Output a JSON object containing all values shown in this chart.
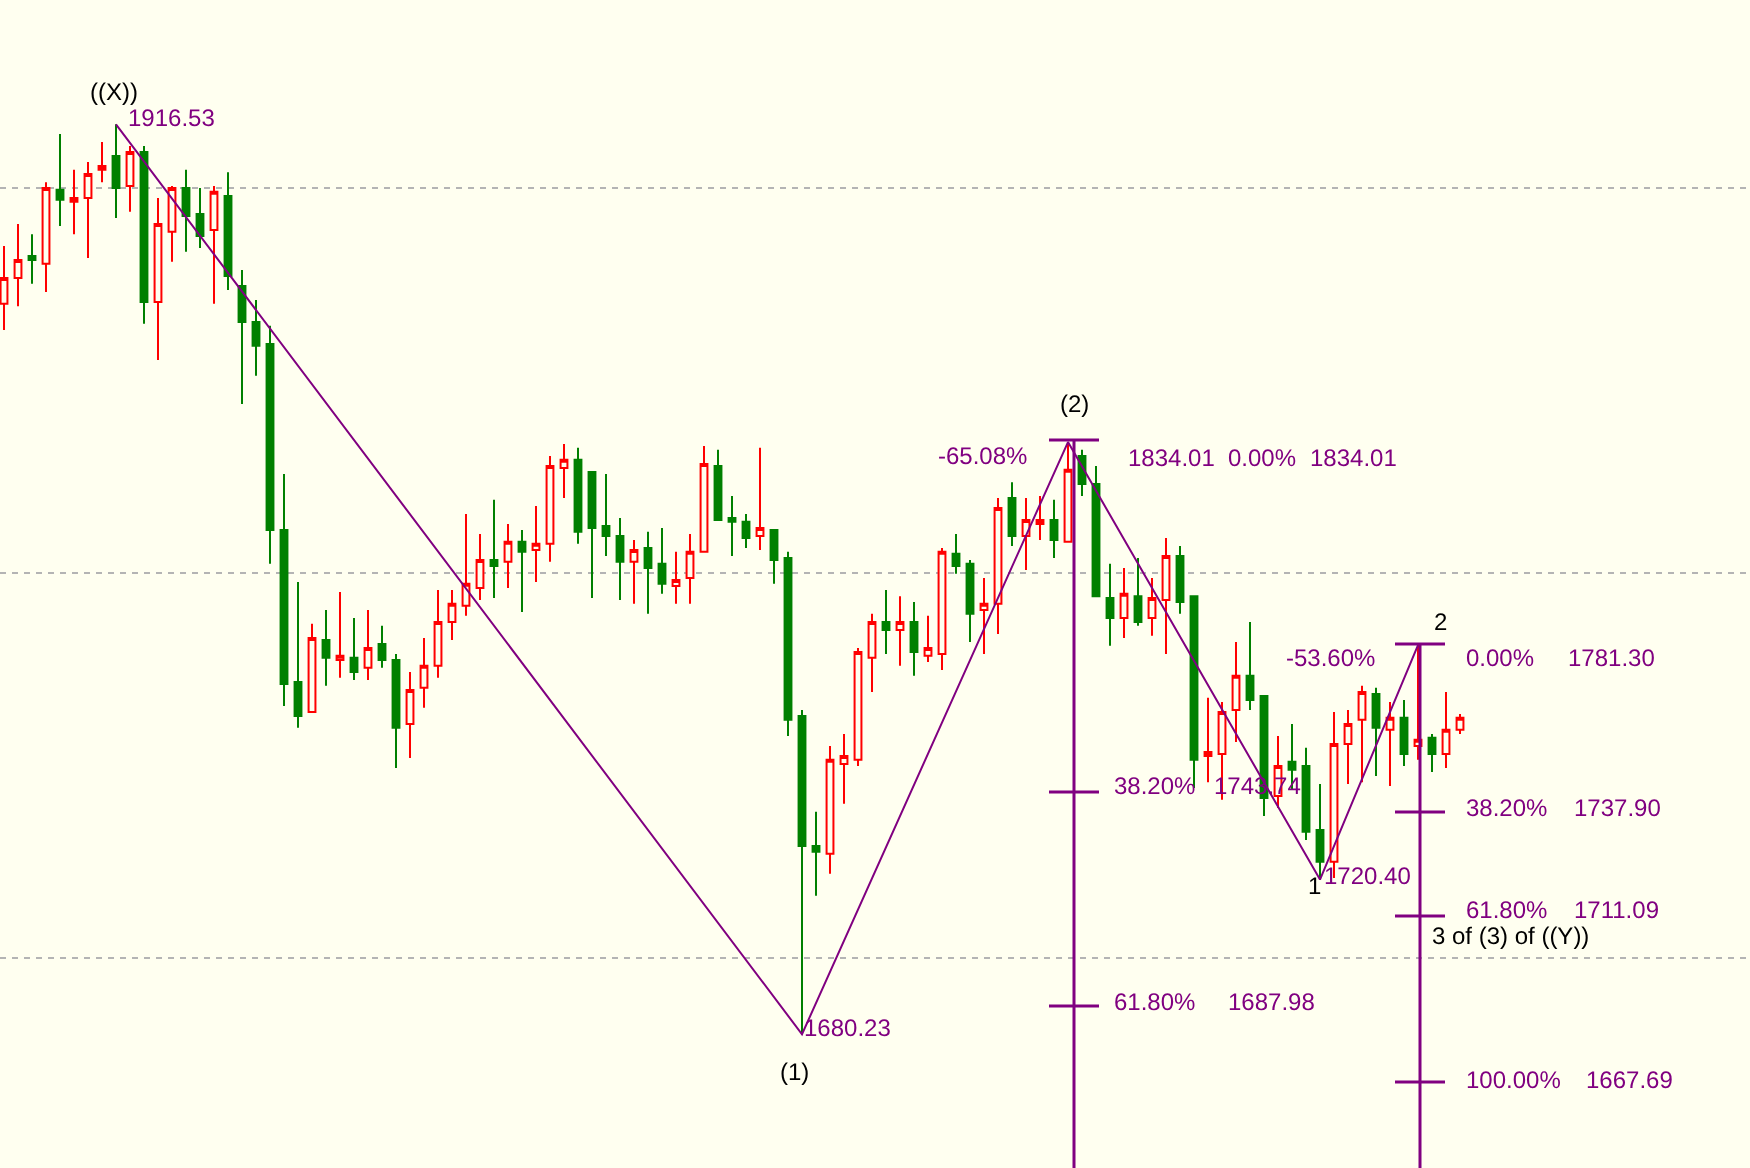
{
  "chart_data": {
    "type": "candlestick",
    "categories": [
      null,
      null,
      null,
      null,
      null,
      null,
      null,
      null,
      null,
      null,
      null,
      null,
      null,
      null,
      null,
      null,
      null,
      null,
      null,
      null,
      null,
      null,
      null,
      null,
      null,
      null,
      null,
      null,
      null,
      null,
      null,
      null,
      null,
      null,
      null,
      null,
      null,
      null,
      null,
      null,
      null,
      null,
      null,
      null,
      null,
      null,
      null,
      null,
      null,
      null,
      null,
      null,
      null,
      null,
      null,
      null,
      null,
      null,
      null,
      null,
      null,
      null,
      null,
      null,
      null,
      null,
      null,
      null,
      null,
      null,
      null,
      null,
      null,
      null,
      null,
      null,
      null,
      null,
      null,
      null,
      null,
      null,
      null,
      null,
      null,
      null,
      null,
      null,
      null,
      null,
      null,
      null,
      null,
      null,
      null,
      null,
      null,
      null,
      null,
      null,
      null,
      null,
      null,
      null,
      null
    ],
    "ohlc": [
      [
        1869.9,
        1884.9,
        1863.1,
        1876.6
      ],
      [
        1876.6,
        1890.6,
        1869.3,
        1881.3
      ],
      [
        1882.3,
        1888.0,
        1875.1,
        1881.3
      ],
      [
        1880.3,
        1901.5,
        1873.0,
        1900.0
      ],
      [
        1899.5,
        1914.0,
        1890.1,
        1896.9
      ],
      [
        1896.4,
        1904.7,
        1888.0,
        1897.4
      ],
      [
        1897.4,
        1906.7,
        1881.8,
        1903.6
      ],
      [
        1904.7,
        1911.9,
        1901.5,
        1905.7
      ],
      [
        1908.3,
        1916.53,
        1892.2,
        1900.0
      ],
      [
        1900.5,
        1910.9,
        1893.8,
        1909.3
      ],
      [
        1909.3,
        1910.9,
        1864.7,
        1870.4
      ],
      [
        1870.4,
        1897.4,
        1855.3,
        1890.6
      ],
      [
        1888.6,
        1900.5,
        1880.8,
        1900.0
      ],
      [
        1900.0,
        1904.7,
        1883.4,
        1892.7
      ],
      [
        1893.2,
        1900.0,
        1884.4,
        1887.5
      ],
      [
        1889.1,
        1900.5,
        1869.9,
        1899.0
      ],
      [
        1897.9,
        1904.1,
        1873.5,
        1877.1
      ],
      [
        1874.5,
        1878.7,
        1843.9,
        1865.2
      ],
      [
        1865.2,
        1870.9,
        1851.2,
        1859.0
      ],
      [
        1859.5,
        1864.2,
        1802.4,
        1811.2
      ],
      [
        1811.2,
        1825.7,
        1765.5,
        1771.2
      ],
      [
        1771.7,
        1797.7,
        1759.8,
        1762.9
      ],
      [
        1763.9,
        1786.8,
        1763.9,
        1783.1
      ],
      [
        1782.6,
        1790.4,
        1770.7,
        1778.0
      ],
      [
        1777.4,
        1795.1,
        1772.8,
        1778.5
      ],
      [
        1778.0,
        1788.3,
        1772.2,
        1774.3
      ],
      [
        1775.4,
        1790.4,
        1772.2,
        1780.5
      ],
      [
        1781.6,
        1786.3,
        1775.4,
        1777.4
      ],
      [
        1777.4,
        1779.0,
        1749.4,
        1759.8
      ],
      [
        1760.8,
        1774.3,
        1752.0,
        1769.6
      ],
      [
        1770.2,
        1783.1,
        1765.0,
        1775.9
      ],
      [
        1775.9,
        1795.6,
        1772.8,
        1787.3
      ],
      [
        1787.3,
        1795.6,
        1782.6,
        1792.0
      ],
      [
        1791.5,
        1815.3,
        1788.9,
        1797.2
      ],
      [
        1796.1,
        1810.1,
        1793.0,
        1803.4
      ],
      [
        1803.4,
        1819.0,
        1793.5,
        1801.8
      ],
      [
        1802.9,
        1812.7,
        1796.1,
        1808.1
      ],
      [
        1808.1,
        1811.2,
        1789.9,
        1805.5
      ],
      [
        1806.0,
        1817.4,
        1797.7,
        1807.6
      ],
      [
        1807.6,
        1830.4,
        1802.9,
        1827.8
      ],
      [
        1827.3,
        1833.5,
        1819.5,
        1829.4
      ],
      [
        1829.4,
        1832.5,
        1807.6,
        1810.7
      ],
      [
        1826.2,
        1826.2,
        1793.5,
        1811.7
      ],
      [
        1812.2,
        1825.7,
        1804.4,
        1809.6
      ],
      [
        1809.6,
        1814.3,
        1793.0,
        1802.9
      ],
      [
        1802.9,
        1808.6,
        1792.0,
        1806.0
      ],
      [
        1806.5,
        1810.7,
        1789.4,
        1801.3
      ],
      [
        1802.4,
        1811.7,
        1794.6,
        1797.2
      ],
      [
        1796.6,
        1805.5,
        1792.0,
        1798.2
      ],
      [
        1798.7,
        1810.1,
        1792.0,
        1805.5
      ],
      [
        1805.5,
        1833.0,
        1805.5,
        1828.3
      ],
      [
        1827.8,
        1832.0,
        1813.8,
        1813.8
      ],
      [
        1814.3,
        1820.0,
        1804.4,
        1813.3
      ],
      [
        1813.3,
        1815.3,
        1806.5,
        1809.1
      ],
      [
        1809.6,
        1832.5,
        1806.0,
        1811.7
      ],
      [
        1811.2,
        1811.2,
        1797.2,
        1803.4
      ],
      [
        1803.9,
        1805.5,
        1757.7,
        1761.9
      ],
      [
        1762.9,
        1764.4,
        1680.23,
        1729.1
      ],
      [
        1729.1,
        1738.0,
        1716.2,
        1727.6
      ],
      [
        1727.1,
        1755.1,
        1721.9,
        1751.5
      ],
      [
        1750.4,
        1758.2,
        1740.1,
        1752.5
      ],
      [
        1751.5,
        1780.5,
        1749.9,
        1779.5
      ],
      [
        1778.0,
        1789.4,
        1769.1,
        1787.3
      ],
      [
        1787.3,
        1795.6,
        1779.0,
        1785.2
      ],
      [
        1785.2,
        1794.0,
        1775.9,
        1787.3
      ],
      [
        1787.3,
        1792.5,
        1773.3,
        1779.5
      ],
      [
        1778.5,
        1788.9,
        1776.9,
        1780.5
      ],
      [
        1779.0,
        1806.5,
        1774.8,
        1805.5
      ],
      [
        1805.0,
        1810.1,
        1799.8,
        1801.8
      ],
      [
        1802.4,
        1803.4,
        1782.1,
        1789.4
      ],
      [
        1790.4,
        1798.7,
        1779.0,
        1792.0
      ],
      [
        1792.0,
        1819.5,
        1784.2,
        1816.9
      ],
      [
        1819.5,
        1823.6,
        1807.0,
        1809.6
      ],
      [
        1809.6,
        1819.5,
        1800.8,
        1813.8
      ],
      [
        1812.7,
        1820.0,
        1808.6,
        1813.8
      ],
      [
        1813.8,
        1819.0,
        1803.9,
        1808.6
      ],
      [
        1808.1,
        1834.01,
        1808.1,
        1826.8
      ],
      [
        1830.4,
        1832.0,
        1820.0,
        1823.1
      ],
      [
        1823.1,
        1827.8,
        1794.0,
        1794.0
      ],
      [
        1793.5,
        1802.4,
        1781.1,
        1788.3
      ],
      [
        1788.3,
        1801.3,
        1783.1,
        1794.6
      ],
      [
        1794.0,
        1803.9,
        1786.3,
        1787.3
      ],
      [
        1788.3,
        1798.7,
        1783.7,
        1793.5
      ],
      [
        1793.0,
        1809.1,
        1779.0,
        1804.4
      ],
      [
        1804.4,
        1807.0,
        1789.4,
        1792.5
      ],
      [
        1794.0,
        1794.0,
        1744.2,
        1751.5
      ],
      [
        1752.5,
        1767.6,
        1745.7,
        1753.5
      ],
      [
        1753.0,
        1766.5,
        1741.1,
        1763.9
      ],
      [
        1764.4,
        1782.1,
        1756.1,
        1773.3
      ],
      [
        1773.3,
        1787.3,
        1764.4,
        1767.0
      ],
      [
        1768.1,
        1768.1,
        1736.9,
        1741.6
      ],
      [
        1742.1,
        1757.7,
        1739.0,
        1749.9
      ],
      [
        1751.0,
        1760.8,
        1743.7,
        1748.9
      ],
      [
        1749.9,
        1754.6,
        1730.7,
        1732.8
      ],
      [
        1733.3,
        1745.2,
        1720.4,
        1725.0
      ],
      [
        1725.0,
        1763.9,
        1720.8,
        1755.6
      ],
      [
        1755.6,
        1764.4,
        1745.2,
        1760.8
      ],
      [
        1761.9,
        1770.7,
        1745.7,
        1769.1
      ],
      [
        1768.6,
        1770.2,
        1747.3,
        1759.8
      ],
      [
        1759.3,
        1766.5,
        1744.7,
        1762.4
      ],
      [
        1762.4,
        1767.0,
        1749.9,
        1753.0
      ],
      [
        1755.1,
        1781.3,
        1751.5,
        1756.7
      ],
      [
        1757.2,
        1758.2,
        1748.3,
        1753.0
      ],
      [
        1753.0,
        1769.1,
        1749.4,
        1759.3
      ],
      [
        1759.3,
        1763.4,
        1758.2,
        1762.4
      ]
    ],
    "colors": [
      "#ff0000",
      "#ff0000",
      "#008000",
      "#ff0000",
      "#008000",
      "#ff0000",
      "#ff0000",
      "#ff0000",
      "#008000",
      "#ff0000",
      "#008000",
      "#ff0000",
      "#ff0000",
      "#008000",
      "#008000",
      "#ff0000",
      "#008000",
      "#008000",
      "#008000",
      "#008000",
      "#008000",
      "#008000",
      "#ff0000",
      "#008000",
      "#ff0000",
      "#008000",
      "#ff0000",
      "#008000",
      "#008000",
      "#ff0000",
      "#ff0000",
      "#ff0000",
      "#ff0000",
      "#ff0000",
      "#ff0000",
      "#008000",
      "#ff0000",
      "#008000",
      "#ff0000",
      "#ff0000",
      "#ff0000",
      "#008000",
      "#008000",
      "#008000",
      "#008000",
      "#ff0000",
      "#008000",
      "#008000",
      "#ff0000",
      "#ff0000",
      "#ff0000",
      "#008000",
      "#008000",
      "#008000",
      "#ff0000",
      "#008000",
      "#008000",
      "#008000",
      "#008000",
      "#ff0000",
      "#ff0000",
      "#ff0000",
      "#ff0000",
      "#008000",
      "#ff0000",
      "#008000",
      "#ff0000",
      "#ff0000",
      "#008000",
      "#008000",
      "#ff0000",
      "#ff0000",
      "#008000",
      "#ff0000",
      "#ff0000",
      "#008000",
      "#ff0000",
      "#008000",
      "#008000",
      "#008000",
      "#ff0000",
      "#008000",
      "#ff0000",
      "#ff0000",
      "#008000",
      "#008000",
      "#ff0000",
      "#ff0000",
      "#ff0000",
      "#008000",
      "#008000",
      "#ff0000",
      "#008000",
      "#008000",
      "#008000",
      "#ff0000",
      "#ff0000",
      "#ff0000",
      "#008000",
      "#ff0000",
      "#008000",
      "#ff0000",
      "#008000",
      "#ff0000",
      "#ff0000"
    ],
    "series": [
      {
        "type": "line",
        "color": "#800080",
        "values": [
          null,
          null,
          null,
          null,
          null,
          null,
          null,
          null,
          1916.53,
          null,
          null,
          null,
          null,
          null,
          null,
          null,
          null,
          null,
          null,
          null,
          null,
          null,
          null,
          null,
          null,
          null,
          null,
          null,
          null,
          null,
          null,
          null,
          null,
          null,
          null,
          null,
          null,
          null,
          null,
          null,
          null,
          null,
          null,
          null,
          null,
          null,
          null,
          null,
          null,
          null,
          null,
          null,
          null,
          null,
          null,
          null,
          null,
          1680.23,
          null,
          null,
          null,
          null,
          null,
          null,
          null,
          null,
          null,
          null,
          null,
          null,
          null,
          null,
          null,
          null,
          null,
          null,
          1834.01,
          null,
          null,
          null,
          null,
          null,
          null,
          null,
          null,
          null,
          null,
          null,
          null,
          null,
          null,
          null,
          null,
          null,
          1720.4,
          null,
          null,
          null,
          null,
          null,
          null,
          1781.3,
          null,
          null,
          null
        ]
      }
    ],
    "ylim": [
      1645.5,
      1948.8
    ],
    "yticks": [
      {
        "value": 1700,
        "label": null
      },
      {
        "value": 1800,
        "label": null
      },
      {
        "value": 1900,
        "label": null
      }
    ],
    "grid": "y",
    "tick_labels": false,
    "line_style": "solid",
    "annotations": [
      "((X))",
      "1916.53",
      "-65.08%",
      "1834.01",
      "0.00%",
      "1834.01",
      "(2)",
      "38.20%",
      "1743.74",
      "61.80%",
      "1687.98",
      "1680.23",
      "(1)",
      "1",
      "1720.40",
      "-53.60%",
      "2",
      "0.00%",
      "1781.30",
      "38.20%",
      "1737.90",
      "61.80%",
      "1711.09",
      "3 of (3) of ((Y))",
      "100.00%",
      "1667.69"
    ]
  }
}
